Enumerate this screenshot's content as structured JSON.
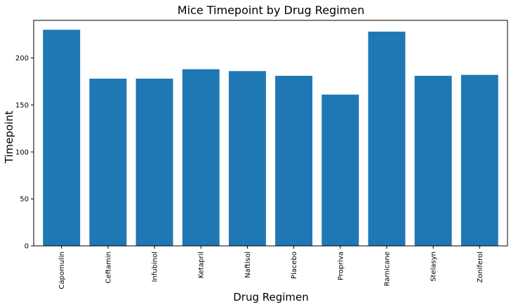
{
  "chart_data": {
    "type": "bar",
    "title": "Mice Timepoint by Drug Regimen",
    "xlabel": "Drug Regimen",
    "ylabel": "Timepoint",
    "categories": [
      "Capomulin",
      "Ceftamin",
      "Infubinol",
      "Ketapril",
      "Naftisol",
      "Placebo",
      "Propriva",
      "Ramicane",
      "Stelasyn",
      "Zoniferol"
    ],
    "values": [
      230,
      178,
      178,
      188,
      186,
      181,
      161,
      228,
      181,
      182
    ],
    "ylim": [
      0,
      240
    ],
    "yticks": [
      0,
      50,
      100,
      150,
      200
    ],
    "bar_color": "#1f77b4",
    "grid": false
  }
}
